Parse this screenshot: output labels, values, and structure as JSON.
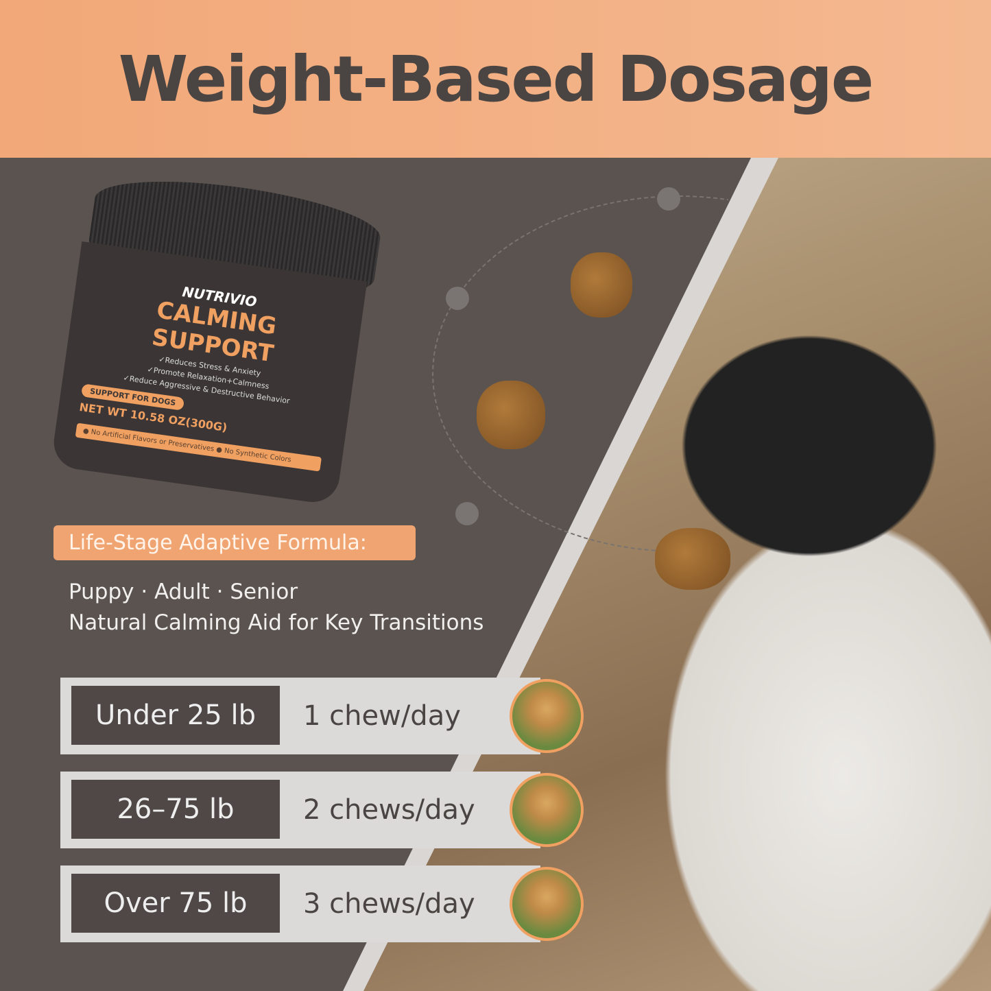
{
  "header": {
    "title": "Weight-Based Dosage"
  },
  "product": {
    "brand": "NUTRIVIO",
    "name": "CALMING SUPPORT",
    "claims": [
      "✓Reduces Stress & Anxiety",
      "✓Promote Relaxation+Calmness",
      "✓Reduce Aggressive & Destructive Behavior"
    ],
    "badge": "SUPPORT FOR DOGS",
    "net_weight": "NET WT 10.58 OZ(300G)",
    "band": "● No Artificial Flavors or Preservatives ● No Synthetic Colors"
  },
  "formula": {
    "tag": "Life-Stage Adaptive Formula:",
    "line1": "Puppy · Adult · Senior",
    "line2": "Natural Calming Aid for Key Transitions"
  },
  "dosage": [
    {
      "weight": "Under 25 lb",
      "dose": "1 chew/day"
    },
    {
      "weight": "26–75 lb",
      "dose": "2 chews/day"
    },
    {
      "weight": "Over 75 lb",
      "dose": "3 chews/day"
    }
  ],
  "colors": {
    "accent": "#f0a472",
    "background": "#5a5350",
    "header": "#f2a878"
  }
}
